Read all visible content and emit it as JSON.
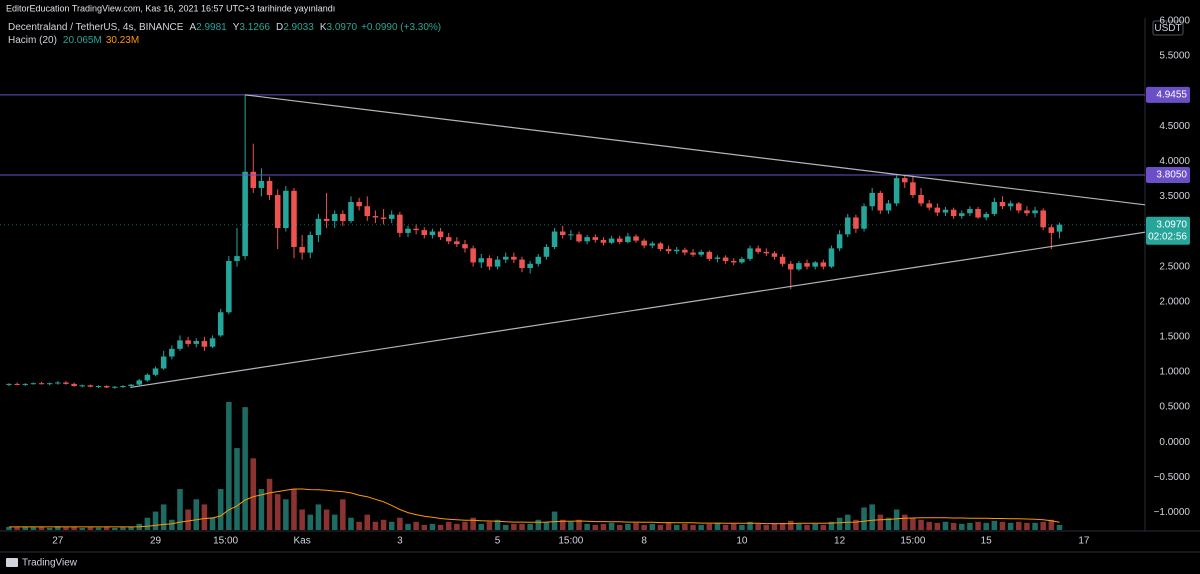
{
  "chart_data": {
    "type": "candlestick",
    "header": "EditorEducation TradingView.com, Kas 16, 2021 16:57 UTC+3 tarihinde yayınlandı",
    "symbol": "Decentraland / TetherUS, 4s, BINANCE",
    "ohlc_legend": [
      {
        "key": "A",
        "value": "2.9981"
      },
      {
        "key": "Y",
        "value": "3.1266"
      },
      {
        "key": "D",
        "value": "2.9033"
      },
      {
        "key": "K",
        "value": "3.0970"
      }
    ],
    "change": "+0.0990 (+3.30%)",
    "volume_name": "Hacim (20)",
    "volume_last": "20.065M",
    "volume_ma_last": "30.23M",
    "currency": "USDT",
    "footer": "TradingView",
    "up_color": "#26a69a",
    "down_color": "#ef5350",
    "volume_up_color": "#1d6b63",
    "volume_down_color": "#8a3331",
    "volume_ma_color": "#ff9800",
    "trendline_color": "#b2b5be",
    "hline_color": "#6a4fc7",
    "xlim": [
      -1.1,
      139.5
    ],
    "ylim": [
      -1.25,
      6.04
    ],
    "y2lim": [
      0,
      2000
    ],
    "xticks": [
      {
        "value": 6,
        "label": "27"
      },
      {
        "value": 18,
        "label": "29"
      },
      {
        "value": 26.6,
        "label": "15:00"
      },
      {
        "value": 36,
        "label": "Kas"
      },
      {
        "value": 48,
        "label": "3"
      },
      {
        "value": 60,
        "label": "5"
      },
      {
        "value": 69,
        "label": "15:00"
      },
      {
        "value": 78,
        "label": "8"
      },
      {
        "value": 90,
        "label": "10"
      },
      {
        "value": 102,
        "label": "12"
      },
      {
        "value": 111,
        "label": "15:00"
      },
      {
        "value": 120,
        "label": "15"
      },
      {
        "value": 132,
        "label": "17"
      }
    ],
    "yticks": [
      {
        "value": 6,
        "label": "6.0000"
      },
      {
        "value": 5.5,
        "label": "5.5000"
      },
      {
        "value": 4.5,
        "label": "4.5000"
      },
      {
        "value": 4,
        "label": "4.0000"
      },
      {
        "value": 3.5,
        "label": "3.5000"
      },
      {
        "value": 2.5,
        "label": "2.5000"
      },
      {
        "value": 2,
        "label": "2.0000"
      },
      {
        "value": 1.5,
        "label": "1.5000"
      },
      {
        "value": 1,
        "label": "1.0000"
      },
      {
        "value": 0.5,
        "label": "0.5000"
      },
      {
        "value": 0,
        "label": "0.0000"
      },
      {
        "value": -0.5,
        "label": "−0.5000"
      },
      {
        "value": -1,
        "label": "−1.0000"
      }
    ],
    "hlines": [
      {
        "value": 4.9455,
        "label": "4.9455"
      },
      {
        "value": 3.805,
        "label": "3.8050"
      }
    ],
    "last_price_label": "3.0970",
    "countdown": "02:02:56",
    "trendlines": [
      [
        [
          29,
          4.9455
        ],
        [
          139.5,
          3.38
        ]
      ],
      [
        [
          14.9,
          0.78
        ],
        [
          139.5,
          2.99
        ]
      ]
    ],
    "candles": [
      [
        0.82,
        0.84,
        0.8,
        0.83
      ],
      [
        0.83,
        0.85,
        0.81,
        0.82
      ],
      [
        0.82,
        0.84,
        0.8,
        0.83
      ],
      [
        0.83,
        0.85,
        0.82,
        0.84
      ],
      [
        0.84,
        0.86,
        0.82,
        0.83
      ],
      [
        0.83,
        0.85,
        0.81,
        0.84
      ],
      [
        0.84,
        0.87,
        0.82,
        0.85
      ],
      [
        0.85,
        0.87,
        0.82,
        0.83
      ],
      [
        0.83,
        0.85,
        0.79,
        0.8
      ],
      [
        0.8,
        0.82,
        0.78,
        0.81
      ],
      [
        0.81,
        0.82,
        0.78,
        0.79
      ],
      [
        0.79,
        0.81,
        0.77,
        0.8
      ],
      [
        0.8,
        0.81,
        0.77,
        0.78
      ],
      [
        0.78,
        0.8,
        0.76,
        0.79
      ],
      [
        0.79,
        0.81,
        0.77,
        0.8
      ],
      [
        0.8,
        0.83,
        0.78,
        0.82
      ],
      [
        0.82,
        0.9,
        0.81,
        0.88
      ],
      [
        0.88,
        0.98,
        0.86,
        0.96
      ],
      [
        0.96,
        1.08,
        0.94,
        1.05
      ],
      [
        1.05,
        1.3,
        1.03,
        1.22
      ],
      [
        1.22,
        1.38,
        1.18,
        1.33
      ],
      [
        1.33,
        1.52,
        1.3,
        1.45
      ],
      [
        1.45,
        1.5,
        1.36,
        1.4
      ],
      [
        1.4,
        1.48,
        1.35,
        1.44
      ],
      [
        1.44,
        1.5,
        1.3,
        1.36
      ],
      [
        1.36,
        1.52,
        1.34,
        1.48
      ],
      [
        1.52,
        1.9,
        1.5,
        1.85
      ],
      [
        1.85,
        2.65,
        1.82,
        2.58
      ],
      [
        2.58,
        3.05,
        2.5,
        2.65
      ],
      [
        2.65,
        4.9455,
        2.6,
        3.85
      ],
      [
        3.85,
        4.25,
        3.55,
        3.62
      ],
      [
        3.62,
        3.9,
        3.5,
        3.72
      ],
      [
        3.72,
        3.78,
        3.45,
        3.52
      ],
      [
        3.52,
        3.6,
        2.75,
        3.05
      ],
      [
        3.05,
        3.65,
        3.0,
        3.58
      ],
      [
        3.58,
        3.62,
        2.62,
        2.78
      ],
      [
        2.78,
        2.95,
        2.6,
        2.7
      ],
      [
        2.7,
        3.0,
        2.62,
        2.95
      ],
      [
        2.95,
        3.25,
        2.85,
        3.18
      ],
      [
        3.18,
        3.55,
        3.05,
        3.15
      ],
      [
        3.15,
        3.3,
        3.05,
        3.25
      ],
      [
        3.25,
        3.3,
        3.08,
        3.15
      ],
      [
        3.15,
        3.5,
        3.12,
        3.42
      ],
      [
        3.42,
        3.48,
        3.3,
        3.36
      ],
      [
        3.36,
        3.5,
        3.15,
        3.22
      ],
      [
        3.22,
        3.3,
        3.12,
        3.2
      ],
      [
        3.2,
        3.32,
        3.1,
        3.18
      ],
      [
        3.18,
        3.3,
        3.12,
        3.24
      ],
      [
        3.24,
        3.28,
        2.92,
        2.98
      ],
      [
        2.98,
        3.08,
        2.92,
        3.04
      ],
      [
        3.04,
        3.1,
        2.96,
        3.02
      ],
      [
        3.02,
        3.06,
        2.9,
        2.95
      ],
      [
        2.95,
        3.04,
        2.9,
        3.0
      ],
      [
        3.0,
        3.05,
        2.88,
        2.92
      ],
      [
        2.92,
        2.98,
        2.82,
        2.86
      ],
      [
        2.86,
        2.92,
        2.78,
        2.82
      ],
      [
        2.82,
        2.88,
        2.7,
        2.76
      ],
      [
        2.76,
        2.8,
        2.5,
        2.56
      ],
      [
        2.56,
        2.68,
        2.48,
        2.62
      ],
      [
        2.62,
        2.66,
        2.45,
        2.5
      ],
      [
        2.5,
        2.65,
        2.46,
        2.6
      ],
      [
        2.6,
        2.7,
        2.55,
        2.64
      ],
      [
        2.64,
        2.7,
        2.55,
        2.6
      ],
      [
        2.6,
        2.64,
        2.42,
        2.48
      ],
      [
        2.48,
        2.58,
        2.4,
        2.54
      ],
      [
        2.54,
        2.68,
        2.5,
        2.64
      ],
      [
        2.64,
        2.82,
        2.6,
        2.78
      ],
      [
        2.78,
        3.05,
        2.75,
        3.0
      ],
      [
        3.0,
        3.08,
        2.9,
        2.95
      ],
      [
        2.95,
        3.02,
        2.88,
        2.96
      ],
      [
        2.96,
        3.0,
        2.84,
        2.86
      ],
      [
        2.86,
        2.95,
        2.82,
        2.92
      ],
      [
        2.92,
        2.96,
        2.84,
        2.88
      ],
      [
        2.88,
        2.92,
        2.8,
        2.84
      ],
      [
        2.84,
        2.94,
        2.82,
        2.9
      ],
      [
        2.9,
        2.94,
        2.82,
        2.85
      ],
      [
        2.85,
        2.98,
        2.83,
        2.93
      ],
      [
        2.93,
        2.96,
        2.84,
        2.87
      ],
      [
        2.87,
        2.9,
        2.76,
        2.8
      ],
      [
        2.8,
        2.86,
        2.76,
        2.83
      ],
      [
        2.83,
        2.85,
        2.72,
        2.75
      ],
      [
        2.75,
        2.8,
        2.68,
        2.72
      ],
      [
        2.72,
        2.78,
        2.68,
        2.74
      ],
      [
        2.74,
        2.77,
        2.66,
        2.7
      ],
      [
        2.7,
        2.75,
        2.64,
        2.67
      ],
      [
        2.67,
        2.74,
        2.64,
        2.71
      ],
      [
        2.71,
        2.73,
        2.58,
        2.61
      ],
      [
        2.61,
        2.66,
        2.56,
        2.63
      ],
      [
        2.63,
        2.66,
        2.54,
        2.58
      ],
      [
        2.58,
        2.62,
        2.52,
        2.56
      ],
      [
        2.56,
        2.64,
        2.54,
        2.61
      ],
      [
        2.61,
        2.8,
        2.58,
        2.76
      ],
      [
        2.76,
        2.8,
        2.68,
        2.71
      ],
      [
        2.71,
        2.76,
        2.65,
        2.69
      ],
      [
        2.69,
        2.72,
        2.6,
        2.64
      ],
      [
        2.64,
        2.68,
        2.5,
        2.54
      ],
      [
        2.54,
        2.58,
        2.18,
        2.46
      ],
      [
        2.46,
        2.58,
        2.44,
        2.55
      ],
      [
        2.55,
        2.6,
        2.46,
        2.5
      ],
      [
        2.5,
        2.58,
        2.46,
        2.56
      ],
      [
        2.56,
        2.6,
        2.46,
        2.5
      ],
      [
        2.5,
        2.8,
        2.48,
        2.76
      ],
      [
        2.76,
        3.02,
        2.72,
        2.96
      ],
      [
        2.96,
        3.25,
        2.92,
        3.2
      ],
      [
        3.2,
        3.24,
        2.98,
        3.04
      ],
      [
        3.04,
        3.4,
        3.0,
        3.36
      ],
      [
        3.36,
        3.62,
        3.3,
        3.55
      ],
      [
        3.55,
        3.58,
        3.25,
        3.3
      ],
      [
        3.3,
        3.45,
        3.25,
        3.4
      ],
      [
        3.4,
        3.82,
        3.36,
        3.76
      ],
      [
        3.76,
        3.81,
        3.62,
        3.7
      ],
      [
        3.7,
        3.78,
        3.48,
        3.52
      ],
      [
        3.52,
        3.62,
        3.36,
        3.4
      ],
      [
        3.4,
        3.45,
        3.3,
        3.34
      ],
      [
        3.34,
        3.4,
        3.22,
        3.27
      ],
      [
        3.27,
        3.35,
        3.22,
        3.31
      ],
      [
        3.31,
        3.34,
        3.18,
        3.22
      ],
      [
        3.22,
        3.3,
        3.18,
        3.26
      ],
      [
        3.26,
        3.36,
        3.22,
        3.32
      ],
      [
        3.32,
        3.35,
        3.18,
        3.2
      ],
      [
        3.2,
        3.28,
        3.16,
        3.25
      ],
      [
        3.25,
        3.48,
        3.22,
        3.42
      ],
      [
        3.42,
        3.5,
        3.32,
        3.36
      ],
      [
        3.36,
        3.44,
        3.3,
        3.4
      ],
      [
        3.4,
        3.42,
        3.26,
        3.3
      ],
      [
        3.3,
        3.36,
        3.22,
        3.26
      ],
      [
        3.26,
        3.35,
        3.2,
        3.3
      ],
      [
        3.3,
        3.33,
        3.02,
        3.06
      ],
      [
        3.06,
        3.1,
        2.75,
        2.98
      ],
      [
        2.9981,
        3.1266,
        2.9033,
        3.097
      ]
    ],
    "volume": [
      12,
      10,
      14,
      10,
      12,
      8,
      15,
      10,
      12,
      8,
      10,
      9,
      11,
      8,
      10,
      12,
      24,
      48,
      72,
      100,
      40,
      160,
      80,
      120,
      100,
      50,
      160,
      500,
      320,
      480,
      280,
      160,
      200,
      140,
      120,
      160,
      80,
      60,
      100,
      80,
      60,
      120,
      48,
      32,
      60,
      32,
      40,
      32,
      48,
      24,
      32,
      20,
      24,
      20,
      32,
      24,
      32,
      48,
      24,
      32,
      40,
      20,
      24,
      24,
      24,
      40,
      32,
      72,
      40,
      32,
      40,
      24,
      20,
      24,
      28,
      20,
      24,
      28,
      20,
      24,
      20,
      28,
      20,
      24,
      20,
      20,
      24,
      28,
      20,
      24,
      20,
      32,
      24,
      20,
      24,
      28,
      36,
      24,
      20,
      24,
      20,
      32,
      48,
      60,
      40,
      88,
      100,
      60,
      48,
      80,
      60,
      48,
      40,
      32,
      28,
      32,
      28,
      24,
      28,
      32,
      28,
      36,
      32,
      28,
      32,
      28,
      28,
      32,
      40,
      20.065
    ],
    "volume_ma": [
      12,
      12,
      12,
      12,
      12,
      12,
      12,
      12,
      12,
      12,
      12,
      12,
      12,
      12,
      12,
      12,
      13,
      15,
      18,
      22,
      24,
      31,
      35,
      40,
      45,
      47,
      55,
      79,
      94,
      117,
      130,
      137,
      145,
      150,
      155,
      160,
      160,
      158,
      157,
      155,
      152,
      150,
      145,
      136,
      130,
      120,
      110,
      96,
      80,
      68,
      60,
      54,
      50,
      45,
      42,
      40,
      38,
      38,
      36,
      35,
      34,
      32,
      31,
      31,
      30,
      30,
      31,
      33,
      34,
      34,
      35,
      34,
      33,
      33,
      32,
      32,
      31,
      31,
      30,
      30,
      29,
      29,
      28,
      28,
      28,
      27,
      27,
      27,
      26,
      26,
      26,
      26,
      26,
      25,
      25,
      25,
      25,
      26,
      26,
      26,
      26,
      27,
      28,
      30,
      31,
      34,
      38,
      40,
      41,
      44,
      46,
      47,
      48,
      48,
      48,
      48,
      47,
      47,
      46,
      46,
      46,
      45,
      45,
      44,
      44,
      43,
      42,
      40,
      36,
      30.23
    ]
  }
}
